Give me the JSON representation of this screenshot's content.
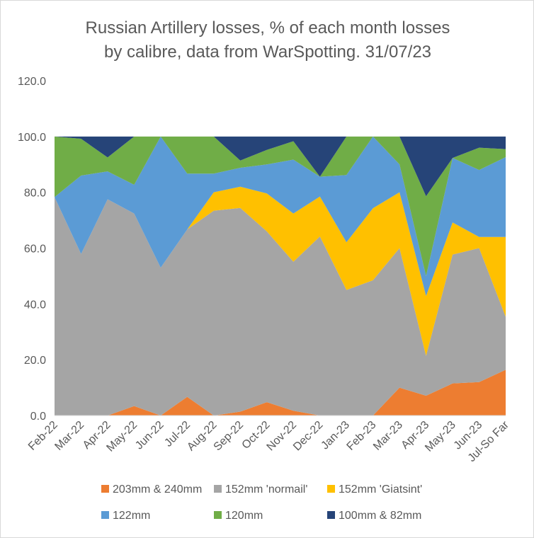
{
  "chart_data": {
    "type": "area",
    "stacked": true,
    "title": [
      "Russian Artillery losses, % of each month losses",
      "by calibre, data from WarSpotting. 31/07/23"
    ],
    "xlabel": "",
    "ylabel": "",
    "ylim": [
      0,
      120
    ],
    "yticks": [
      "0.0",
      "20.0",
      "40.0",
      "60.0",
      "80.0",
      "100.0",
      "120.0"
    ],
    "grid": false,
    "legend_position": "bottom",
    "categories": [
      "Feb-22",
      "Mar-22",
      "Apr-22",
      "May-22",
      "Jun-22",
      "Jul-22",
      "Aug-22",
      "Sep-22",
      "Oct-22",
      "Nov-22",
      "Dec-22",
      "Jan-23",
      "Feb-23",
      "Mar-23",
      "Apr-23",
      "May-23",
      "Jun-23",
      "Jul-So Far"
    ],
    "series": [
      {
        "name": "203mm & 240mm",
        "color": "#ED7D31",
        "values": [
          0,
          0,
          0,
          3.4,
          0,
          6.7,
          0,
          1.4,
          4.8,
          1.7,
          0,
          0,
          0,
          10,
          7.1,
          11.5,
          12,
          16.4
        ]
      },
      {
        "name": "152mm 'normail'",
        "color": "#A5A5A5",
        "values": [
          78.3,
          57.9,
          77.5,
          69,
          53,
          60,
          73.4,
          73,
          61.2,
          53.4,
          64.2,
          45,
          48.5,
          50,
          14.3,
          46.2,
          48,
          19
        ]
      },
      {
        "name": "152mm 'Giatsint'",
        "color": "#FFC000",
        "values": [
          0,
          0,
          0,
          0,
          0,
          0,
          6.6,
          7.6,
          13.6,
          17.3,
          14.3,
          17.1,
          25.8,
          20,
          21.4,
          11.5,
          4,
          28.6
        ]
      },
      {
        "name": "122mm",
        "color": "#5B9BD5",
        "values": [
          0,
          28.1,
          10,
          10.3,
          47,
          20,
          6.7,
          6.8,
          10.4,
          19.3,
          7.1,
          24.1,
          25.7,
          10,
          7.2,
          23.1,
          24,
          28.6
        ]
      },
      {
        "name": "120mm",
        "color": "#70AD47",
        "values": [
          21.7,
          13.2,
          5,
          17.3,
          0,
          13.3,
          13.3,
          2.6,
          5.2,
          6.6,
          0,
          13.8,
          0,
          10,
          28.6,
          0,
          8,
          2.9
        ]
      },
      {
        "name": "100mm & 82mm",
        "color": "#264478",
        "values": [
          0,
          0.8,
          7.5,
          0,
          0,
          0,
          0,
          8.6,
          4.8,
          1.7,
          14.4,
          0,
          0,
          0,
          21.4,
          7.7,
          4,
          4.5
        ]
      }
    ]
  }
}
